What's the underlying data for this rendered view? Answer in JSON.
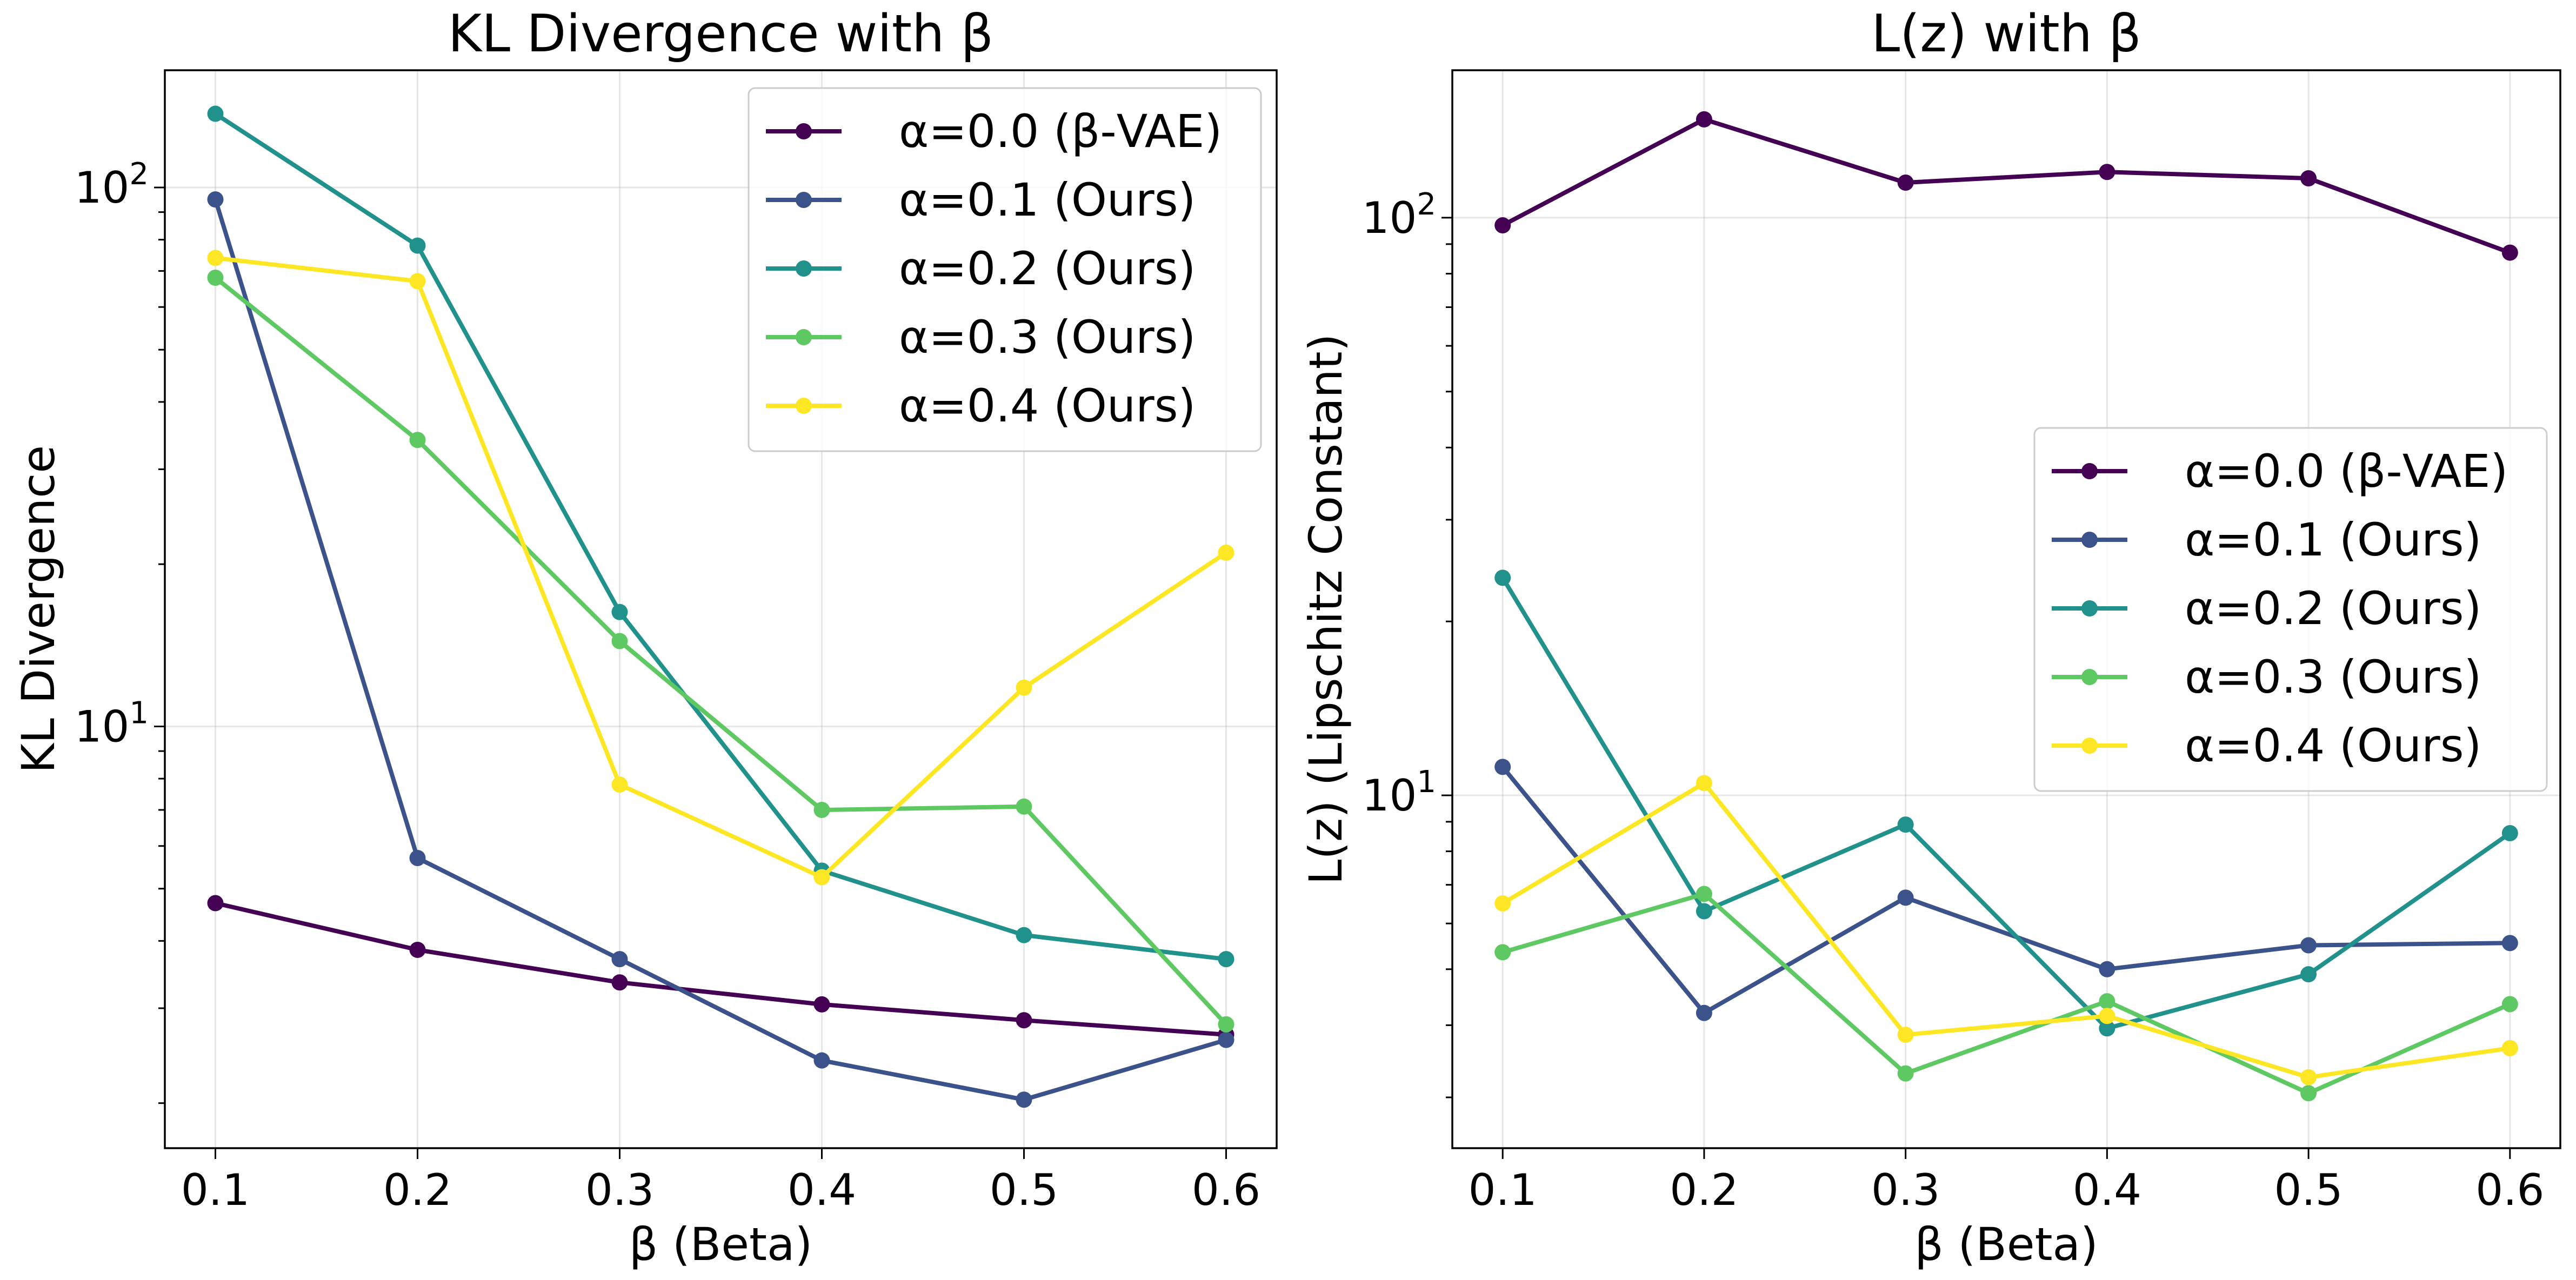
{
  "chart_data": [
    {
      "type": "line",
      "title": "KL Divergence with β",
      "xlabel": "β (Beta)",
      "ylabel": "KL Divergence",
      "yscale": "log",
      "xlim": [
        0.075,
        0.625
      ],
      "ylim": [
        1.65,
        165
      ],
      "x_ticks": [
        "0.1",
        "0.2",
        "0.3",
        "0.4",
        "0.5",
        "0.6"
      ],
      "y_ticks": [
        {
          "value": 10,
          "base": "10",
          "exp": "1"
        },
        {
          "value": 100,
          "base": "10",
          "exp": "2"
        }
      ],
      "grid": true,
      "legend_position": "upper-right",
      "x": [
        0.1,
        0.2,
        0.3,
        0.4,
        0.5,
        0.6
      ],
      "series": [
        {
          "name": "α=0.0 (β-VAE)",
          "color": "#440154",
          "values": [
            4.7,
            3.85,
            3.35,
            3.05,
            2.85,
            2.68
          ]
        },
        {
          "name": "α=0.1 (Ours)",
          "color": "#3b528b",
          "values": [
            95,
            5.7,
            3.7,
            2.4,
            2.03,
            2.62
          ]
        },
        {
          "name": "α=0.2 (Ours)",
          "color": "#21918c",
          "values": [
            137,
            78,
            16.3,
            5.4,
            4.1,
            3.7
          ]
        },
        {
          "name": "α=0.3 (Ours)",
          "color": "#5ec962",
          "values": [
            68,
            34,
            14.4,
            7.0,
            7.1,
            2.8
          ]
        },
        {
          "name": "α=0.4 (Ours)",
          "color": "#fde725",
          "values": [
            74,
            67,
            7.8,
            5.25,
            11.8,
            21
          ]
        }
      ]
    },
    {
      "type": "line",
      "title": "L(z) with β",
      "xlabel": "β (Beta)",
      "ylabel": "L(z) (Lipschitz Constant)",
      "yscale": "log",
      "xlim": [
        0.075,
        0.625
      ],
      "ylim": [
        2.45,
        180
      ],
      "x_ticks": [
        "0.1",
        "0.2",
        "0.3",
        "0.4",
        "0.5",
        "0.6"
      ],
      "y_ticks": [
        {
          "value": 10,
          "base": "10",
          "exp": "1"
        },
        {
          "value": 100,
          "base": "10",
          "exp": "2"
        }
      ],
      "grid": true,
      "legend_position": "center-right",
      "x": [
        0.1,
        0.2,
        0.3,
        0.4,
        0.5,
        0.6
      ],
      "series": [
        {
          "name": "α=0.0 (β-VAE)",
          "color": "#440154",
          "values": [
            97,
            148,
            115,
            120,
            117,
            87
          ]
        },
        {
          "name": "α=0.1 (Ours)",
          "color": "#3b528b",
          "values": [
            11.2,
            4.2,
            6.65,
            5.0,
            5.5,
            5.55
          ]
        },
        {
          "name": "α=0.2 (Ours)",
          "color": "#21918c",
          "values": [
            23.8,
            6.3,
            8.9,
            3.95,
            4.9,
            8.6
          ]
        },
        {
          "name": "α=0.3 (Ours)",
          "color": "#5ec962",
          "values": [
            5.35,
            6.75,
            3.3,
            4.4,
            3.05,
            4.35
          ]
        },
        {
          "name": "α=0.4 (Ours)",
          "color": "#fde725",
          "values": [
            6.5,
            10.5,
            3.85,
            4.15,
            3.25,
            3.65
          ]
        }
      ]
    }
  ]
}
